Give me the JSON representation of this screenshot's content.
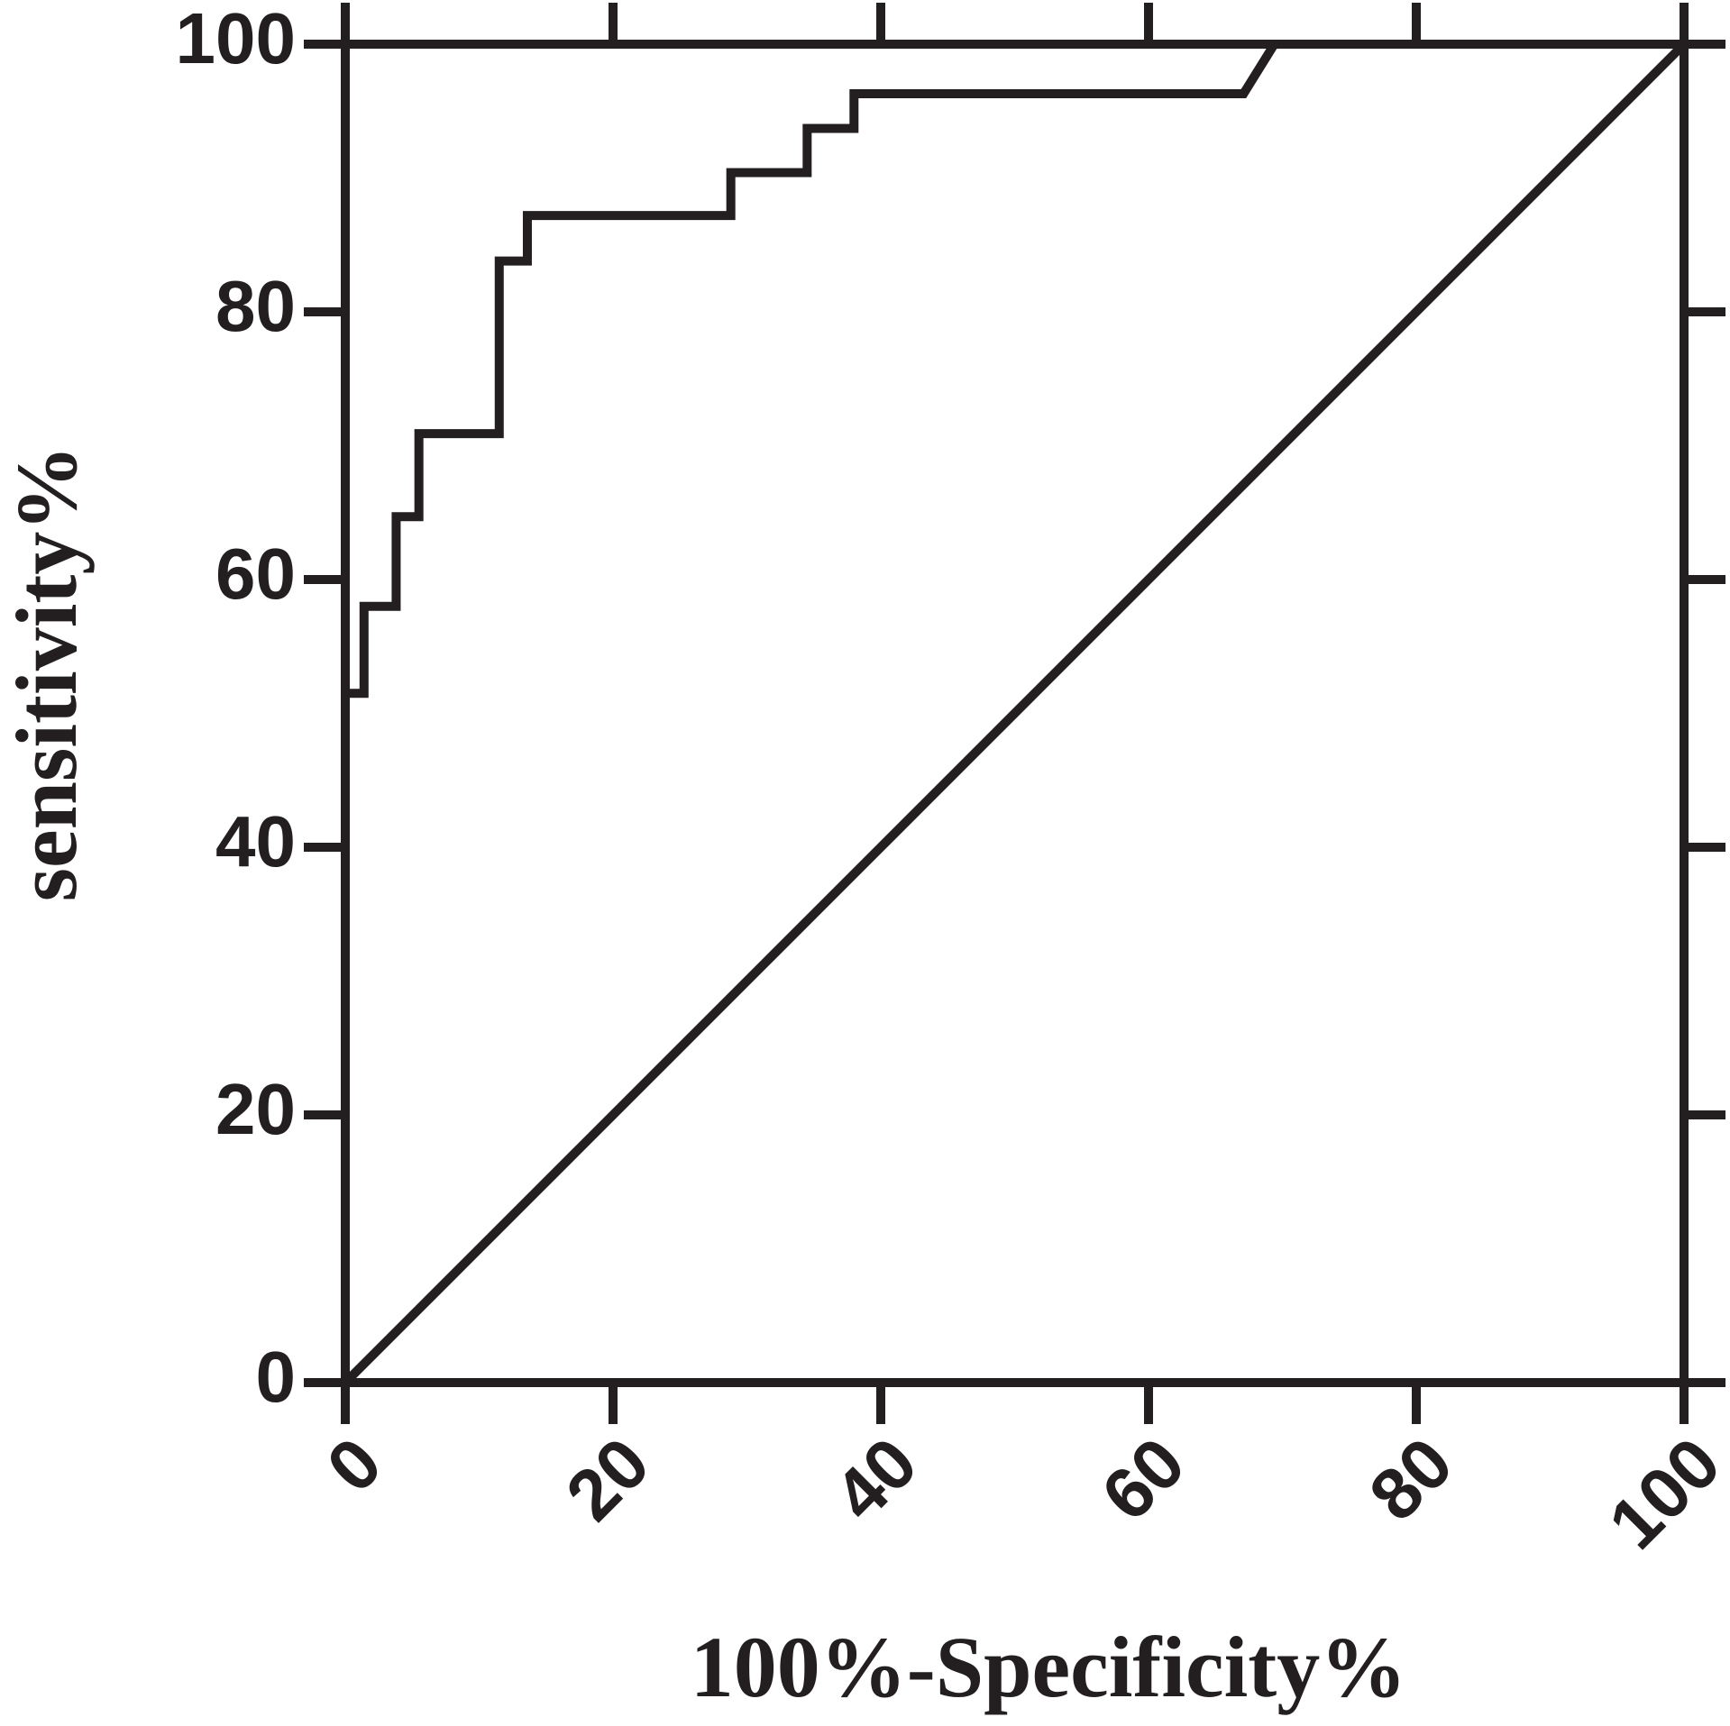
{
  "chart_data": {
    "type": "line",
    "x_label": "100%-Specificity%",
    "y_label": "sensitivity%",
    "xlim": [
      0,
      100
    ],
    "ylim": [
      0,
      100
    ],
    "xticks": [
      0,
      20,
      40,
      60,
      80,
      100
    ],
    "yticks": [
      0,
      20,
      40,
      60,
      80,
      100
    ],
    "grid": false,
    "series": [
      {
        "color": "#231f20",
        "x": [
          0,
          0,
          1.4,
          1.4,
          3.8,
          3.8,
          5.5,
          5.5,
          11.5,
          11.5,
          13.6,
          13.6,
          28.8,
          28.8,
          34.5,
          34.5,
          38,
          38,
          67.1,
          69.4,
          100
        ],
        "values": [
          0,
          51.5,
          51.5,
          58,
          58,
          64.7,
          64.7,
          70.9,
          70.9,
          83.8,
          83.8,
          87.2,
          87.2,
          90.4,
          90.4,
          93.7,
          93.7,
          96.3,
          96.3,
          100,
          100
        ]
      },
      {
        "color": "#231f20",
        "x": [
          0,
          100
        ],
        "values": [
          0,
          100
        ]
      }
    ]
  }
}
